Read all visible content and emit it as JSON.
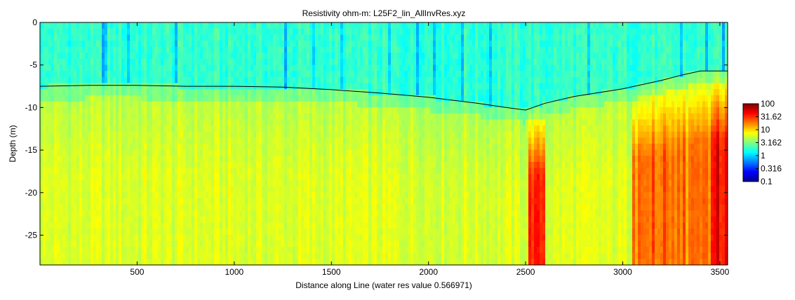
{
  "chart_data": {
    "type": "heatmap",
    "title": "Resistivity ohm-m: L25F2_lin_AllInvRes.xyz",
    "xlabel": "Distance along Line (water res value 0.566971)",
    "ylabel": "Depth (m)",
    "xlim": [
      0,
      3540
    ],
    "ylim": [
      -28.5,
      0
    ],
    "x_ticks": [
      500,
      1000,
      1500,
      2000,
      2500,
      3000,
      3500
    ],
    "x_tick_labels": [
      "500",
      "1000",
      "1500",
      "2000",
      "2500",
      "3000",
      "3500"
    ],
    "y_ticks": [
      0,
      -5,
      -10,
      -15,
      -20,
      -25
    ],
    "y_tick_labels": [
      "0",
      "-5",
      "-10",
      "-15",
      "-20",
      "-25"
    ],
    "colorbar": {
      "scale": "log",
      "range": [
        0.1,
        100
      ],
      "ticks": [
        100,
        31.62,
        10,
        3.162,
        1,
        0.316,
        0.1
      ],
      "tick_labels": [
        "100",
        "31.62",
        "10",
        "3.162",
        "1",
        "0.316",
        "0.1"
      ],
      "colormap": "jet"
    },
    "water_bottom_line": {
      "x": [
        0,
        250,
        500,
        750,
        1000,
        1250,
        1500,
        1750,
        2000,
        2250,
        2400,
        2500,
        2600,
        2750,
        3000,
        3200,
        3300,
        3400,
        3540
      ],
      "y": [
        -7.5,
        -7.4,
        -7.4,
        -7.5,
        -7.5,
        -7.6,
        -7.9,
        -8.3,
        -8.8,
        -9.5,
        -10.0,
        -10.3,
        -9.5,
        -8.7,
        -7.8,
        -6.8,
        -6.2,
        -5.7,
        -5.7
      ]
    },
    "description_zones": [
      {
        "depth_range": [
          0,
          -10
        ],
        "resistivity": 1.0
      },
      {
        "depth_range": [
          -10,
          -28.5
        ],
        "resistivity": 4.0
      }
    ]
  }
}
